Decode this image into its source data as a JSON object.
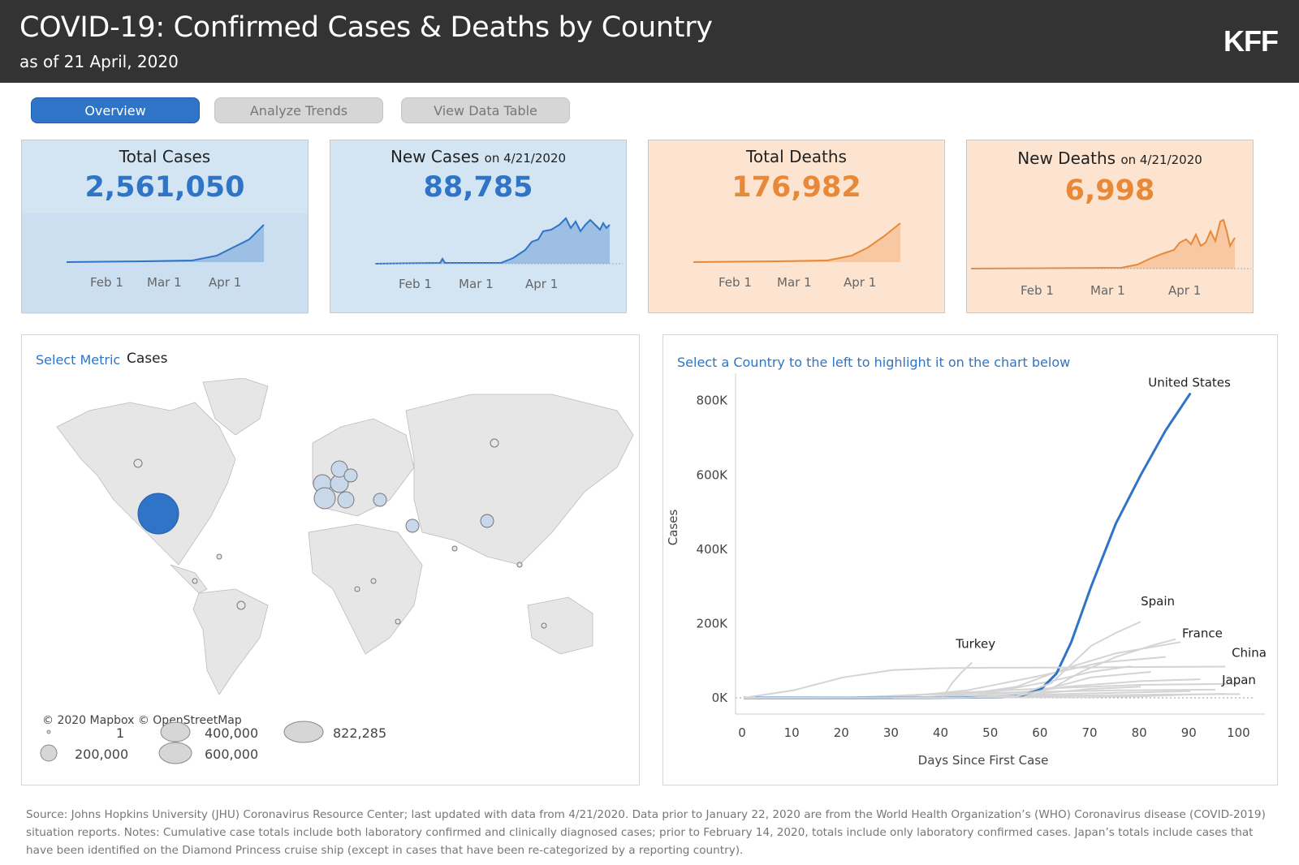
{
  "header": {
    "title": "COVID-19: Confirmed Cases & Deaths by Country",
    "subtitle": "as of 21 April, 2020",
    "logo": "KFF"
  },
  "tabs": [
    {
      "label": "Overview",
      "active": true
    },
    {
      "label": "Analyze Trends",
      "active": false
    },
    {
      "label": "View Data Table",
      "active": false
    }
  ],
  "cards": {
    "total_cases": {
      "label": "Total Cases",
      "value": "2,561,050"
    },
    "new_cases": {
      "label": "New Cases",
      "date": "on 4/21/2020",
      "value": "88,785"
    },
    "total_deaths": {
      "label": "Total Deaths",
      "value": "176,982"
    },
    "new_deaths": {
      "label": "New Deaths",
      "date": "on 4/21/2020",
      "value": "6,998"
    },
    "axis_ticks": [
      "Feb 1",
      "Mar 1",
      "Apr 1"
    ]
  },
  "colors": {
    "blue": "#2f74c6",
    "orange": "#e8893a",
    "header": "#333333"
  },
  "map": {
    "metric_label": "Select Metric",
    "metric_value": "Cases",
    "credit": "© 2020 Mapbox © OpenStreetMap",
    "legend": [
      "1",
      "200,000",
      "400,000",
      "600,000",
      "822,285"
    ]
  },
  "trend_chart": {
    "instruction": "Select a Country to the left to highlight it on the chart below"
  },
  "chart_data": {
    "type": "line",
    "xlabel": "Days Since First Case",
    "ylabel": "Cases",
    "xlim": [
      0,
      105
    ],
    "ylim": [
      0,
      830000
    ],
    "x_ticks": [
      0,
      10,
      20,
      30,
      40,
      50,
      60,
      70,
      80,
      90,
      100
    ],
    "y_ticks": [
      {
        "value": 0,
        "label": "0K"
      },
      {
        "value": 200000,
        "label": "200K"
      },
      {
        "value": 400000,
        "label": "400K"
      },
      {
        "value": 600000,
        "label": "600K"
      },
      {
        "value": 800000,
        "label": "800K"
      }
    ],
    "series": [
      {
        "name": "United States",
        "highlight": true,
        "x": [
          0,
          20,
          40,
          52,
          56,
          60,
          63,
          66,
          70,
          75,
          80,
          85,
          90
        ],
        "y": [
          0,
          0,
          500,
          1500,
          6000,
          25000,
          65000,
          150000,
          300000,
          470000,
          600000,
          720000,
          820000
        ]
      },
      {
        "name": "Spain",
        "x": [
          30,
          45,
          55,
          62,
          66,
          70,
          75,
          80
        ],
        "y": [
          0,
          500,
          5000,
          40000,
          90000,
          140000,
          175000,
          205000
        ]
      },
      {
        "name": "France",
        "x": [
          30,
          45,
          55,
          62,
          68,
          75,
          82,
          87
        ],
        "y": [
          0,
          1000,
          5000,
          25000,
          70000,
          110000,
          140000,
          158000
        ]
      },
      {
        "name": "China",
        "x": [
          0,
          10,
          20,
          30,
          40,
          50,
          60,
          70,
          80,
          90,
          97
        ],
        "y": [
          0,
          20000,
          55000,
          75000,
          80000,
          81000,
          81500,
          82000,
          83000,
          83500,
          84000
        ]
      },
      {
        "name": "Turkey",
        "x": [
          40,
          42,
          44,
          46
        ],
        "y": [
          0,
          40000,
          70000,
          95000
        ]
      },
      {
        "name": "Japan",
        "x": [
          0,
          30,
          50,
          60,
          70,
          80,
          90,
          97
        ],
        "y": [
          0,
          500,
          1000,
          1500,
          2000,
          4000,
          9000,
          11000
        ]
      }
    ],
    "labels_shown": [
      "United States",
      "Spain",
      "France",
      "China",
      "Turkey",
      "Japan"
    ]
  },
  "source_text": "Source: Johns Hopkins University (JHU) Coronavirus Resource Center; last updated with data from 4/21/2020. Data prior to January 22, 2020 are from the World Health Organization’s (WHO) Coronavirus disease (COVID-2019) situation reports. Notes: Cumulative case totals include both laboratory confirmed and clinically diagnosed cases; prior to February 14, 2020, totals include only laboratory confirmed cases. Japan’s totals include cases that have been identified on the Diamond Princess cruise ship (except in cases that have been re-categorized by a reporting country)."
}
